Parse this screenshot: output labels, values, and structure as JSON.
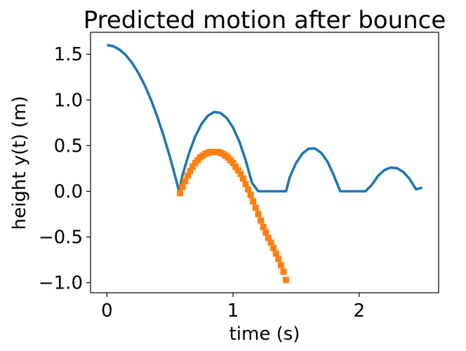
{
  "chart_data": {
    "type": "line",
    "title": "Predicted motion after bounce",
    "xlabel": "time (s)",
    "ylabel": "height y(t) (m)",
    "xlim": [
      -0.13,
      2.63
    ],
    "ylim": [
      -1.11,
      1.74
    ],
    "xticks": [
      0,
      1,
      2
    ],
    "xtick_labels": [
      "0",
      "1",
      "2"
    ],
    "yticks": [
      1.5,
      1.0,
      0.5,
      0.0,
      -0.5,
      -1.0
    ],
    "ytick_labels": [
      "1.5",
      "1.0",
      "0.5",
      "0.0",
      "−0.5",
      "−1.0"
    ],
    "grid": false,
    "series": [
      {
        "style": "line",
        "color": "#1f77b4",
        "x": [
          0.0,
          0.05,
          0.1,
          0.15,
          0.2,
          0.25,
          0.3,
          0.35,
          0.4,
          0.45,
          0.5,
          0.55,
          0.571,
          0.6,
          0.65,
          0.7,
          0.75,
          0.8,
          0.85,
          0.9,
          0.95,
          1.0,
          1.05,
          1.1,
          1.15,
          1.2,
          1.25,
          1.3,
          1.35,
          1.4,
          1.42,
          1.45,
          1.5,
          1.55,
          1.6,
          1.65,
          1.7,
          1.75,
          1.8,
          1.85,
          1.9,
          1.95,
          2.0,
          2.05,
          2.1,
          2.15,
          2.2,
          2.25,
          2.3,
          2.35,
          2.4,
          2.45,
          2.5
        ],
        "y": [
          1.6,
          1.588,
          1.551,
          1.49,
          1.404,
          1.293,
          1.159,
          0.999,
          0.815,
          0.607,
          0.374,
          0.117,
          0.0,
          0.18,
          0.414,
          0.6,
          0.737,
          0.826,
          0.867,
          0.858,
          0.802,
          0.697,
          0.544,
          0.342,
          0.092,
          0.0,
          0.0,
          0.0,
          0.0,
          0.0,
          0.0,
          0.155,
          0.31,
          0.413,
          0.466,
          0.469,
          0.42,
          0.321,
          0.172,
          0.0,
          0.0,
          0.0,
          0.0,
          0.0,
          0.071,
          0.169,
          0.232,
          0.26,
          0.253,
          0.211,
          0.134,
          0.022,
          0.04
        ]
      },
      {
        "style": "markers",
        "marker": "square",
        "color": "#ff7f0e",
        "x": [
          0.58,
          0.6,
          0.62,
          0.64,
          0.66,
          0.68,
          0.7,
          0.72,
          0.74,
          0.76,
          0.78,
          0.8,
          0.82,
          0.84,
          0.86,
          0.88,
          0.9,
          0.92,
          0.94,
          0.96,
          0.98,
          1.0,
          1.02,
          1.04,
          1.06,
          1.08,
          1.1,
          1.12,
          1.14,
          1.16,
          1.18,
          1.2,
          1.22,
          1.24,
          1.26,
          1.28,
          1.3,
          1.32,
          1.34,
          1.36,
          1.38,
          1.4,
          1.42
        ],
        "y": [
          -0.02,
          0.05,
          0.11,
          0.17,
          0.22,
          0.27,
          0.31,
          0.34,
          0.37,
          0.39,
          0.41,
          0.42,
          0.43,
          0.43,
          0.43,
          0.43,
          0.42,
          0.41,
          0.39,
          0.37,
          0.34,
          0.31,
          0.27,
          0.23,
          0.19,
          0.14,
          0.08,
          0.02,
          -0.04,
          -0.11,
          -0.18,
          -0.25,
          -0.32,
          -0.39,
          -0.45,
          -0.51,
          -0.56,
          -0.62,
          -0.68,
          -0.74,
          -0.81,
          -0.88,
          -0.97
        ]
      }
    ]
  }
}
